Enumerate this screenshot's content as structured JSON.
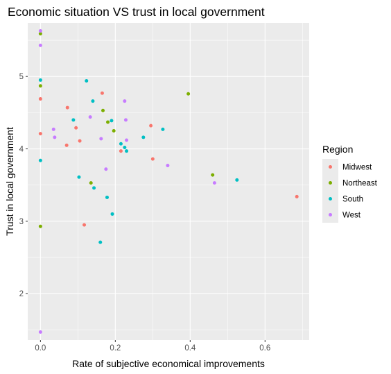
{
  "chart_data": {
    "type": "scatter",
    "title": "Economic situation VS trust in local government",
    "xlabel": "Rate of subjective economical improvements",
    "ylabel": "Trust in local government",
    "xlim": [
      -0.034,
      0.718
    ],
    "ylim": [
      1.36,
      5.74
    ],
    "x_ticks": [
      0.0,
      0.2,
      0.4,
      0.6
    ],
    "x_tick_labels": [
      "0.0",
      "0.2",
      "0.4",
      "0.6"
    ],
    "y_ticks": [
      2,
      3,
      4,
      5
    ],
    "y_tick_labels": [
      "2",
      "3",
      "4",
      "5"
    ],
    "grid": true,
    "legend": {
      "title": "Region",
      "placement": "right",
      "entries": [
        "Midwest",
        "Northeast",
        "South",
        "West"
      ]
    },
    "colors": {
      "Midwest": "#F8766D",
      "Northeast": "#7CAE00",
      "South": "#00BFC4",
      "West": "#C77CFF",
      "panel": "#EBEBEB",
      "grid": "#FFFFFF"
    },
    "series": [
      {
        "name": "Midwest",
        "points": [
          [
            0.0,
            4.69
          ],
          [
            0.0,
            4.21
          ],
          [
            0.072,
            4.57
          ],
          [
            0.095,
            4.29
          ],
          [
            0.07,
            4.05
          ],
          [
            0.105,
            4.11
          ],
          [
            0.117,
            2.95
          ],
          [
            0.165,
            4.77
          ],
          [
            0.215,
            3.97
          ],
          [
            0.295,
            4.32
          ],
          [
            0.3,
            3.86
          ],
          [
            0.685,
            3.34
          ]
        ]
      },
      {
        "name": "Northeast",
        "points": [
          [
            0.0,
            5.59
          ],
          [
            0.0,
            4.87
          ],
          [
            0.0,
            2.93
          ],
          [
            0.167,
            4.53
          ],
          [
            0.18,
            4.37
          ],
          [
            0.196,
            4.25
          ],
          [
            0.135,
            3.53
          ],
          [
            0.395,
            4.76
          ],
          [
            0.46,
            3.64
          ]
        ]
      },
      {
        "name": "South",
        "points": [
          [
            0.0,
            4.95
          ],
          [
            0.0,
            3.84
          ],
          [
            0.123,
            4.94
          ],
          [
            0.14,
            4.66
          ],
          [
            0.088,
            4.4
          ],
          [
            0.19,
            4.39
          ],
          [
            0.215,
            4.07
          ],
          [
            0.225,
            4.02
          ],
          [
            0.23,
            3.97
          ],
          [
            0.275,
            4.16
          ],
          [
            0.327,
            4.27
          ],
          [
            0.103,
            3.61
          ],
          [
            0.143,
            3.46
          ],
          [
            0.178,
            3.33
          ],
          [
            0.192,
            3.1
          ],
          [
            0.16,
            2.71
          ],
          [
            0.525,
            3.57
          ]
        ]
      },
      {
        "name": "West",
        "points": [
          [
            0.0,
            5.63
          ],
          [
            0.0,
            5.43
          ],
          [
            0.0,
            1.47
          ],
          [
            0.035,
            4.27
          ],
          [
            0.038,
            4.16
          ],
          [
            0.133,
            4.44
          ],
          [
            0.162,
            4.14
          ],
          [
            0.225,
            4.66
          ],
          [
            0.228,
            4.4
          ],
          [
            0.23,
            4.12
          ],
          [
            0.175,
            3.72
          ],
          [
            0.34,
            3.77
          ],
          [
            0.465,
            3.53
          ]
        ]
      }
    ]
  }
}
